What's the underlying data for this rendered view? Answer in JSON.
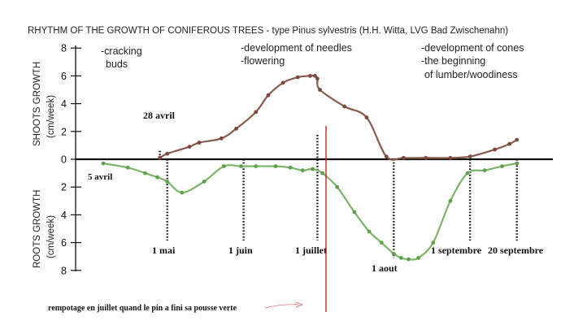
{
  "chart_data": {
    "type": "line",
    "title": "RHYTHM OF THE GROWTH OF CONIFEROUS TREES - type Pinus sylvestris (H.H. Witta, LVG Bad Zwischenahn)",
    "y_upper_label": "SHOOTS GROWTH",
    "y_upper_unit": "(cm/week)",
    "y_lower_label": "ROOTS GROWTH",
    "y_lower_unit": "(cm/week)",
    "y_ticks": [
      "8",
      "6",
      "4",
      "2",
      "0",
      "2",
      "4",
      "6",
      "8"
    ],
    "ylim_upper": [
      0,
      8
    ],
    "ylim_lower": [
      0,
      8
    ],
    "phase_annotations": [
      [
        "-cracking",
        "buds"
      ],
      [
        "-development of needles",
        "-flowering"
      ],
      [
        "-development of cones",
        "-the beginning",
        "of lumber/woodiness"
      ]
    ],
    "date_markers": [
      {
        "label": "1 mai",
        "x": 121
      },
      {
        "label": "1 juin",
        "x": 152
      },
      {
        "label": "1 juillet",
        "x": 182
      },
      {
        "label": "1 aout",
        "x": 213
      },
      {
        "label": "1 septembre",
        "x": 244
      },
      {
        "label": "20 septembre",
        "x": 263
      }
    ],
    "start_markers": [
      {
        "label": "28 avril",
        "x": 118
      },
      {
        "label": "5 avril",
        "x": 95
      }
    ],
    "x_unit": "day of year",
    "series": [
      {
        "name": "shoots",
        "color": "#8a5a4e",
        "x": [
          118,
          121,
          130,
          134,
          143,
          149,
          157,
          162,
          168,
          174,
          179,
          181,
          182,
          183,
          193,
          202,
          210,
          217,
          226,
          236,
          244,
          254,
          260,
          263
        ],
        "y": [
          0.1,
          0.4,
          0.9,
          1.2,
          1.5,
          2.2,
          3.4,
          4.6,
          5.5,
          5.9,
          6.0,
          6.0,
          5.8,
          5.0,
          3.8,
          3.0,
          0.2,
          0.1,
          0.1,
          0.1,
          0.2,
          0.7,
          1.1,
          1.4
        ]
      },
      {
        "name": "roots",
        "color": "#7db36a",
        "x": [
          95,
          105,
          112,
          117,
          121,
          127,
          136,
          144,
          151,
          157,
          165,
          171,
          176,
          180,
          184,
          190,
          197,
          203,
          208,
          213,
          216,
          219,
          223,
          229,
          236,
          243,
          250,
          257,
          263
        ],
        "y": [
          0.3,
          0.6,
          1.0,
          1.3,
          1.6,
          2.4,
          1.6,
          0.5,
          0.5,
          0.5,
          0.5,
          0.6,
          0.8,
          0.7,
          1.0,
          2.0,
          3.8,
          5.2,
          6.0,
          6.8,
          7.1,
          7.2,
          7.1,
          6.0,
          3.0,
          1.0,
          0.8,
          0.5,
          0.3
        ]
      }
    ],
    "annotation": "rempotage en juillet quand le pin a fini sa pousse verte"
  }
}
